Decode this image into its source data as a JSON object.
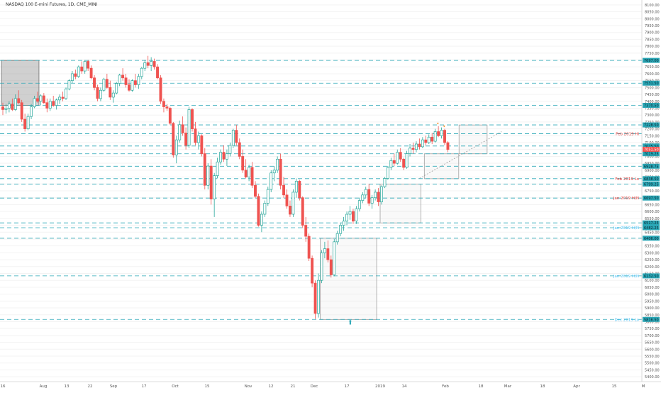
{
  "chart_data": {
    "type": "candlestick",
    "title": "NASDAQ 100 E-mini Futures, 1D, CME_MINI",
    "x_ticks": [
      "16",
      "Aug",
      "13",
      "22",
      "Sep",
      "17",
      "Oct",
      "15",
      "Nov",
      "12",
      "21",
      "Dec",
      "17",
      "2019",
      "14",
      "Feb",
      "18",
      "Mar",
      "18",
      "Apr",
      "15",
      "M"
    ],
    "y_ticks": [
      8100,
      8050,
      8000,
      7950,
      7900,
      7850,
      7800,
      7750,
      7700,
      7650,
      7600,
      7550,
      7500,
      7450,
      7400,
      7350,
      7300,
      7250,
      7200,
      7150,
      7100,
      7050,
      7000,
      6950,
      6900,
      6850,
      6800,
      6750,
      6700,
      6650,
      6600,
      6550,
      6500,
      6450,
      6400,
      6350,
      6300,
      6250,
      6200,
      6150,
      6100,
      6050,
      6000,
      5950,
      5900,
      5850,
      5800,
      5750,
      5700,
      5650,
      5600,
      5550,
      5500,
      5450,
      5400
    ],
    "ylim": [
      5375,
      8125
    ],
    "levels": [
      {
        "value": 7697,
        "label": "7697.00",
        "note": ""
      },
      {
        "value": 7531.5,
        "label": "7531.50",
        "note": ""
      },
      {
        "value": 7370.5,
        "label": "7370.50",
        "note": ""
      },
      {
        "value": 7228.5,
        "label": "7228.50",
        "note": ""
      },
      {
        "value": 7165,
        "label": "",
        "note": "Feb 2019 Hi"
      },
      {
        "value": 7075.5,
        "label": "7075.50",
        "note": ""
      },
      {
        "value": 7019.25,
        "label": "7019.25",
        "note": ""
      },
      {
        "value": 6928.75,
        "label": "6928.75",
        "note": ""
      },
      {
        "value": 6838.5,
        "label": "6838.50",
        "note": "Feb 2019 Lo"
      },
      {
        "value": 6799.25,
        "label": "6799.25",
        "note": ""
      },
      {
        "value": 6697.5,
        "label": "6697.50",
        "note": "Jan 2019 H/N"
      },
      {
        "value": 6517.25,
        "label": "6517.25",
        "note": ""
      },
      {
        "value": 6482.25,
        "label": "6482.25",
        "note": "Jan 2019 H/N"
      },
      {
        "value": 6406,
        "label": "6406.00",
        "note": ""
      },
      {
        "value": 6132.5,
        "label": "6132.50",
        "note": "Jan 2019 H/N"
      },
      {
        "value": 5816.5,
        "label": "5816.50",
        "note": "Dec 2019 Lo"
      }
    ],
    "current_price": {
      "label": "7051.50"
    },
    "candles": [
      {
        "o": 7360,
        "h": 7390,
        "l": 7300,
        "c": 7340
      },
      {
        "o": 7340,
        "h": 7380,
        "l": 7310,
        "c": 7350
      },
      {
        "o": 7350,
        "h": 7400,
        "l": 7320,
        "c": 7380
      },
      {
        "o": 7380,
        "h": 7420,
        "l": 7330,
        "c": 7340
      },
      {
        "o": 7340,
        "h": 7450,
        "l": 7330,
        "c": 7420
      },
      {
        "o": 7420,
        "h": 7480,
        "l": 7380,
        "c": 7390
      },
      {
        "o": 7390,
        "h": 7410,
        "l": 7250,
        "c": 7270
      },
      {
        "o": 7270,
        "h": 7310,
        "l": 7180,
        "c": 7200
      },
      {
        "o": 7200,
        "h": 7310,
        "l": 7190,
        "c": 7290
      },
      {
        "o": 7290,
        "h": 7380,
        "l": 7270,
        "c": 7360
      },
      {
        "o": 7360,
        "h": 7440,
        "l": 7350,
        "c": 7420
      },
      {
        "o": 7420,
        "h": 7470,
        "l": 7390,
        "c": 7400
      },
      {
        "o": 7400,
        "h": 7450,
        "l": 7370,
        "c": 7440
      },
      {
        "o": 7440,
        "h": 7460,
        "l": 7380,
        "c": 7390
      },
      {
        "o": 7390,
        "h": 7420,
        "l": 7320,
        "c": 7350
      },
      {
        "o": 7350,
        "h": 7420,
        "l": 7330,
        "c": 7400
      },
      {
        "o": 7400,
        "h": 7440,
        "l": 7360,
        "c": 7370
      },
      {
        "o": 7370,
        "h": 7420,
        "l": 7340,
        "c": 7410
      },
      {
        "o": 7410,
        "h": 7450,
        "l": 7380,
        "c": 7430
      },
      {
        "o": 7430,
        "h": 7470,
        "l": 7400,
        "c": 7420
      },
      {
        "o": 7420,
        "h": 7500,
        "l": 7410,
        "c": 7490
      },
      {
        "o": 7490,
        "h": 7560,
        "l": 7480,
        "c": 7550
      },
      {
        "o": 7550,
        "h": 7620,
        "l": 7530,
        "c": 7600
      },
      {
        "o": 7600,
        "h": 7630,
        "l": 7560,
        "c": 7580
      },
      {
        "o": 7580,
        "h": 7660,
        "l": 7570,
        "c": 7650
      },
      {
        "o": 7650,
        "h": 7690,
        "l": 7600,
        "c": 7620
      },
      {
        "o": 7620,
        "h": 7700,
        "l": 7600,
        "c": 7690
      },
      {
        "o": 7690,
        "h": 7700,
        "l": 7620,
        "c": 7640
      },
      {
        "o": 7640,
        "h": 7660,
        "l": 7560,
        "c": 7570
      },
      {
        "o": 7570,
        "h": 7590,
        "l": 7480,
        "c": 7500
      },
      {
        "o": 7500,
        "h": 7520,
        "l": 7400,
        "c": 7420
      },
      {
        "o": 7420,
        "h": 7500,
        "l": 7400,
        "c": 7480
      },
      {
        "o": 7480,
        "h": 7570,
        "l": 7470,
        "c": 7560
      },
      {
        "o": 7560,
        "h": 7600,
        "l": 7490,
        "c": 7500
      },
      {
        "o": 7500,
        "h": 7550,
        "l": 7410,
        "c": 7430
      },
      {
        "o": 7430,
        "h": 7480,
        "l": 7390,
        "c": 7460
      },
      {
        "o": 7460,
        "h": 7540,
        "l": 7450,
        "c": 7530
      },
      {
        "o": 7530,
        "h": 7600,
        "l": 7510,
        "c": 7590
      },
      {
        "o": 7590,
        "h": 7640,
        "l": 7550,
        "c": 7570
      },
      {
        "o": 7570,
        "h": 7600,
        "l": 7500,
        "c": 7520
      },
      {
        "o": 7520,
        "h": 7560,
        "l": 7470,
        "c": 7480
      },
      {
        "o": 7480,
        "h": 7560,
        "l": 7470,
        "c": 7550
      },
      {
        "o": 7550,
        "h": 7600,
        "l": 7500,
        "c": 7520
      },
      {
        "o": 7520,
        "h": 7600,
        "l": 7490,
        "c": 7580
      },
      {
        "o": 7580,
        "h": 7650,
        "l": 7560,
        "c": 7640
      },
      {
        "o": 7640,
        "h": 7700,
        "l": 7620,
        "c": 7680
      },
      {
        "o": 7680,
        "h": 7730,
        "l": 7640,
        "c": 7660
      },
      {
        "o": 7660,
        "h": 7720,
        "l": 7620,
        "c": 7690
      },
      {
        "o": 7690,
        "h": 7710,
        "l": 7630,
        "c": 7650
      },
      {
        "o": 7650,
        "h": 7670,
        "l": 7560,
        "c": 7570
      },
      {
        "o": 7570,
        "h": 7590,
        "l": 7380,
        "c": 7400
      },
      {
        "o": 7400,
        "h": 7420,
        "l": 7320,
        "c": 7360
      },
      {
        "o": 7360,
        "h": 7380,
        "l": 7330,
        "c": 7350
      },
      {
        "o": 7350,
        "h": 7360,
        "l": 7230,
        "c": 7240
      },
      {
        "o": 7240,
        "h": 7250,
        "l": 6990,
        "c": 7010
      },
      {
        "o": 7010,
        "h": 7150,
        "l": 6950,
        "c": 7120
      },
      {
        "o": 7120,
        "h": 7260,
        "l": 7100,
        "c": 7230
      },
      {
        "o": 7230,
        "h": 7290,
        "l": 7150,
        "c": 7170
      },
      {
        "o": 7170,
        "h": 7210,
        "l": 7050,
        "c": 7080
      },
      {
        "o": 7080,
        "h": 7360,
        "l": 7060,
        "c": 7340
      },
      {
        "o": 7340,
        "h": 7350,
        "l": 7180,
        "c": 7200
      },
      {
        "o": 7200,
        "h": 7250,
        "l": 7080,
        "c": 7100
      },
      {
        "o": 7100,
        "h": 7180,
        "l": 7050,
        "c": 7150
      },
      {
        "o": 7150,
        "h": 7160,
        "l": 7000,
        "c": 7020
      },
      {
        "o": 7020,
        "h": 7060,
        "l": 6760,
        "c": 6790
      },
      {
        "o": 6790,
        "h": 6950,
        "l": 6760,
        "c": 6930
      },
      {
        "o": 6930,
        "h": 6980,
        "l": 6650,
        "c": 6690
      },
      {
        "o": 6690,
        "h": 6880,
        "l": 6560,
        "c": 6860
      },
      {
        "o": 6860,
        "h": 6990,
        "l": 6840,
        "c": 6960
      },
      {
        "o": 6960,
        "h": 7050,
        "l": 6940,
        "c": 7030
      },
      {
        "o": 7030,
        "h": 7080,
        "l": 6960,
        "c": 6980
      },
      {
        "o": 6980,
        "h": 7050,
        "l": 6930,
        "c": 7020
      },
      {
        "o": 7020,
        "h": 7100,
        "l": 7000,
        "c": 7080
      },
      {
        "o": 7080,
        "h": 7200,
        "l": 7060,
        "c": 7190
      },
      {
        "o": 7190,
        "h": 7230,
        "l": 7080,
        "c": 7100
      },
      {
        "o": 7100,
        "h": 7130,
        "l": 6980,
        "c": 7000
      },
      {
        "o": 7000,
        "h": 7050,
        "l": 6880,
        "c": 6900
      },
      {
        "o": 6900,
        "h": 6980,
        "l": 6840,
        "c": 6850
      },
      {
        "o": 6850,
        "h": 6940,
        "l": 6820,
        "c": 6920
      },
      {
        "o": 6920,
        "h": 6960,
        "l": 6770,
        "c": 6790
      },
      {
        "o": 6790,
        "h": 6820,
        "l": 6700,
        "c": 6710
      },
      {
        "o": 6710,
        "h": 6730,
        "l": 6490,
        "c": 6500
      },
      {
        "o": 6500,
        "h": 6600,
        "l": 6450,
        "c": 6580
      },
      {
        "o": 6580,
        "h": 6680,
        "l": 6560,
        "c": 6660
      },
      {
        "o": 6660,
        "h": 6780,
        "l": 6640,
        "c": 6760
      },
      {
        "o": 6760,
        "h": 6900,
        "l": 6740,
        "c": 6880
      },
      {
        "o": 6880,
        "h": 6930,
        "l": 6820,
        "c": 6900
      },
      {
        "o": 6900,
        "h": 7000,
        "l": 6880,
        "c": 6980
      },
      {
        "o": 6980,
        "h": 7020,
        "l": 6760,
        "c": 6790
      },
      {
        "o": 6790,
        "h": 6850,
        "l": 6700,
        "c": 6720
      },
      {
        "o": 6720,
        "h": 6760,
        "l": 6620,
        "c": 6640
      },
      {
        "o": 6640,
        "h": 6680,
        "l": 6560,
        "c": 6580
      },
      {
        "o": 6580,
        "h": 6760,
        "l": 6560,
        "c": 6740
      },
      {
        "o": 6740,
        "h": 6840,
        "l": 6700,
        "c": 6820
      },
      {
        "o": 6820,
        "h": 6830,
        "l": 6680,
        "c": 6700
      },
      {
        "o": 6700,
        "h": 6710,
        "l": 6480,
        "c": 6500
      },
      {
        "o": 6500,
        "h": 6560,
        "l": 6380,
        "c": 6420
      },
      {
        "o": 6420,
        "h": 6440,
        "l": 6240,
        "c": 6260
      },
      {
        "o": 6260,
        "h": 6280,
        "l": 6050,
        "c": 6080
      },
      {
        "o": 6080,
        "h": 6100,
        "l": 5820,
        "c": 5860
      },
      {
        "o": 5860,
        "h": 6150,
        "l": 5830,
        "c": 6100
      },
      {
        "o": 6100,
        "h": 6320,
        "l": 6080,
        "c": 6300
      },
      {
        "o": 6300,
        "h": 6380,
        "l": 6260,
        "c": 6330
      },
      {
        "o": 6330,
        "h": 6390,
        "l": 6230,
        "c": 6250
      },
      {
        "o": 6250,
        "h": 6280,
        "l": 6120,
        "c": 6140
      },
      {
        "o": 6140,
        "h": 6400,
        "l": 6130,
        "c": 6380
      },
      {
        "o": 6380,
        "h": 6460,
        "l": 6360,
        "c": 6440
      },
      {
        "o": 6440,
        "h": 6520,
        "l": 6420,
        "c": 6500
      },
      {
        "o": 6500,
        "h": 6560,
        "l": 6460,
        "c": 6530
      },
      {
        "o": 6530,
        "h": 6600,
        "l": 6500,
        "c": 6580
      },
      {
        "o": 6580,
        "h": 6640,
        "l": 6540,
        "c": 6600
      },
      {
        "o": 6600,
        "h": 6620,
        "l": 6510,
        "c": 6530
      },
      {
        "o": 6530,
        "h": 6640,
        "l": 6510,
        "c": 6620
      },
      {
        "o": 6620,
        "h": 6700,
        "l": 6600,
        "c": 6680
      },
      {
        "o": 6680,
        "h": 6740,
        "l": 6660,
        "c": 6720
      },
      {
        "o": 6720,
        "h": 6780,
        "l": 6700,
        "c": 6760
      },
      {
        "o": 6760,
        "h": 6800,
        "l": 6640,
        "c": 6660
      },
      {
        "o": 6660,
        "h": 6720,
        "l": 6620,
        "c": 6700
      },
      {
        "o": 6700,
        "h": 6760,
        "l": 6680,
        "c": 6740
      },
      {
        "o": 6740,
        "h": 6770,
        "l": 6640,
        "c": 6670
      },
      {
        "o": 6670,
        "h": 6790,
        "l": 6650,
        "c": 6780
      },
      {
        "o": 6780,
        "h": 6850,
        "l": 6770,
        "c": 6840
      },
      {
        "o": 6840,
        "h": 6930,
        "l": 6830,
        "c": 6920
      },
      {
        "o": 6920,
        "h": 6990,
        "l": 6900,
        "c": 6970
      },
      {
        "o": 6970,
        "h": 7020,
        "l": 6930,
        "c": 6950
      },
      {
        "o": 6950,
        "h": 7050,
        "l": 6940,
        "c": 7030
      },
      {
        "o": 7030,
        "h": 7060,
        "l": 6960,
        "c": 6980
      },
      {
        "o": 6980,
        "h": 6990,
        "l": 6900,
        "c": 6920
      },
      {
        "o": 6920,
        "h": 7040,
        "l": 6910,
        "c": 7020
      },
      {
        "o": 7020,
        "h": 7090,
        "l": 7000,
        "c": 7060
      },
      {
        "o": 7060,
        "h": 7100,
        "l": 7020,
        "c": 7050
      },
      {
        "o": 7050,
        "h": 7110,
        "l": 7030,
        "c": 7090
      },
      {
        "o": 7090,
        "h": 7130,
        "l": 7050,
        "c": 7070
      },
      {
        "o": 7070,
        "h": 7140,
        "l": 7060,
        "c": 7120
      },
      {
        "o": 7120,
        "h": 7150,
        "l": 7080,
        "c": 7100
      },
      {
        "o": 7100,
        "h": 7160,
        "l": 7090,
        "c": 7140
      },
      {
        "o": 7140,
        "h": 7170,
        "l": 7090,
        "c": 7110
      },
      {
        "o": 7110,
        "h": 7200,
        "l": 7100,
        "c": 7180
      },
      {
        "o": 7180,
        "h": 7220,
        "l": 7140,
        "c": 7150
      },
      {
        "o": 7150,
        "h": 7210,
        "l": 7130,
        "c": 7190
      },
      {
        "o": 7190,
        "h": 7200,
        "l": 7080,
        "c": 7100
      },
      {
        "o": 7100,
        "h": 7110,
        "l": 7030,
        "c": 7050
      }
    ],
    "zones": [
      {
        "from": 0,
        "to": 11,
        "bottom": 7370,
        "top": 7697,
        "style": "dark"
      },
      {
        "from": 101,
        "to": 118,
        "bottom": 5816,
        "top": 6406,
        "style": "light"
      },
      {
        "from": 120,
        "to": 132,
        "bottom": 6517,
        "top": 6799,
        "style": "light"
      },
      {
        "from": 134,
        "to": 144,
        "bottom": 6838,
        "top": 7019,
        "style": "light"
      },
      {
        "from": 145,
        "to": 153,
        "bottom": 7019,
        "top": 7228,
        "style": "light"
      }
    ],
    "colors": {
      "up": "#26a69a",
      "down": "#ef5350",
      "level": "#2aa7b6",
      "label_bg": "#2aa7b6",
      "note": "#e53935",
      "note_blue": "#4fc3f7"
    }
  }
}
